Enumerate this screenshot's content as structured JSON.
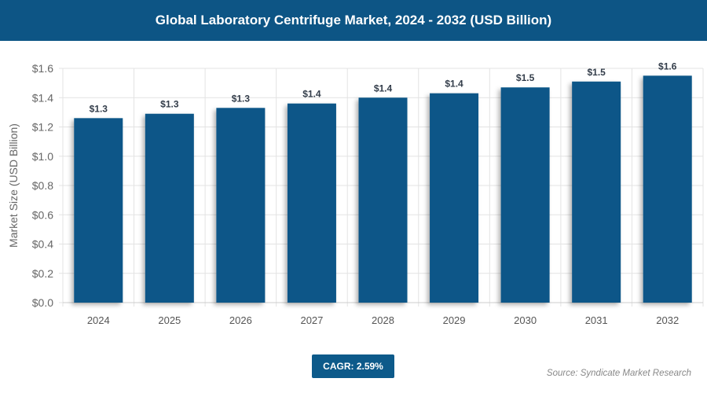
{
  "header": {
    "title": "Global Laboratory Centrifuge Market, 2024 - 2032 (USD Billion)"
  },
  "chart_data": {
    "type": "bar",
    "title": "Global Laboratory Centrifuge Market, 2024 - 2032 (USD Billion)",
    "xlabel": "",
    "ylabel": "Market Size (USD Billion)",
    "ylim": [
      0,
      1.6
    ],
    "yticks": [
      "$0.0",
      "$0.2",
      "$0.4",
      "$0.6",
      "$0.8",
      "$1.0",
      "$1.2",
      "$1.4",
      "$1.6"
    ],
    "categories": [
      "2024",
      "2025",
      "2026",
      "2027",
      "2028",
      "2029",
      "2030",
      "2031",
      "2032"
    ],
    "values": [
      1.26,
      1.29,
      1.33,
      1.36,
      1.4,
      1.43,
      1.47,
      1.51,
      1.55
    ],
    "data_labels": [
      "$1.3",
      "$1.3",
      "$1.3",
      "$1.4",
      "$1.4",
      "$1.4",
      "$1.5",
      "$1.5",
      "$1.6"
    ],
    "grid": true,
    "bar_color": "#0b5788"
  },
  "footer": {
    "cagr": "CAGR: 2.59%",
    "source": "Source: Syndicate Market Research"
  }
}
